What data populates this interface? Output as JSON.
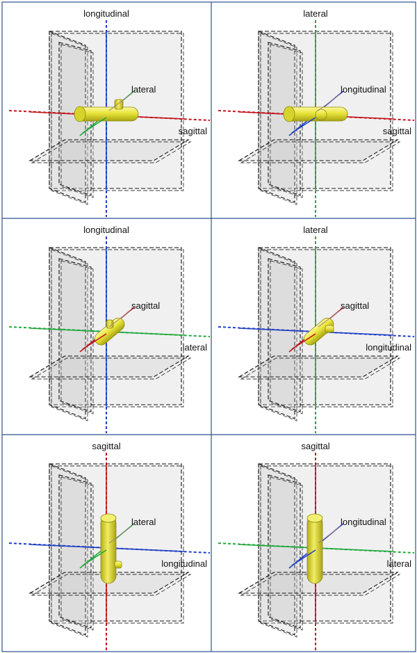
{
  "colors": {
    "red": "#c0141c",
    "green": "#1fa83a",
    "blue": "#1f3fc4",
    "body": "#e8e43a",
    "grid_line": "#2f4f8f"
  },
  "panels": [
    {
      "vertical_label": "longitudinal",
      "horizontal_label": "sagittal",
      "depth_label": "lateral",
      "vertical_color": "blue",
      "horizontal_color": "red",
      "depth_color": "green",
      "body_orientation": "horizontal",
      "nub": "up"
    },
    {
      "vertical_label": "lateral",
      "horizontal_label": "sagittal",
      "depth_label": "longitudinal",
      "vertical_color": "green",
      "horizontal_color": "red",
      "depth_color": "blue",
      "body_orientation": "horizontal",
      "nub": "front"
    },
    {
      "vertical_label": "longitudinal",
      "horizontal_label": "lateral",
      "depth_label": "sagittal",
      "vertical_color": "blue",
      "horizontal_color": "green",
      "depth_color": "red",
      "body_orientation": "depth",
      "nub": "front"
    },
    {
      "vertical_label": "lateral",
      "horizontal_label": "longitudinal",
      "depth_label": "sagittal",
      "vertical_color": "green",
      "horizontal_color": "blue",
      "depth_color": "red",
      "body_orientation": "depth",
      "nub": "side"
    },
    {
      "vertical_label": "sagittal",
      "horizontal_label": "longitudinal",
      "depth_label": "lateral",
      "vertical_color": "red",
      "horizontal_color": "blue",
      "depth_color": "green",
      "body_orientation": "vertical",
      "nub": "side"
    },
    {
      "vertical_label": "sagittal",
      "horizontal_label": "lateral",
      "depth_label": "longitudinal",
      "vertical_color": "red",
      "horizontal_color": "green",
      "depth_color": "blue",
      "body_orientation": "vertical",
      "nub": "none"
    }
  ]
}
